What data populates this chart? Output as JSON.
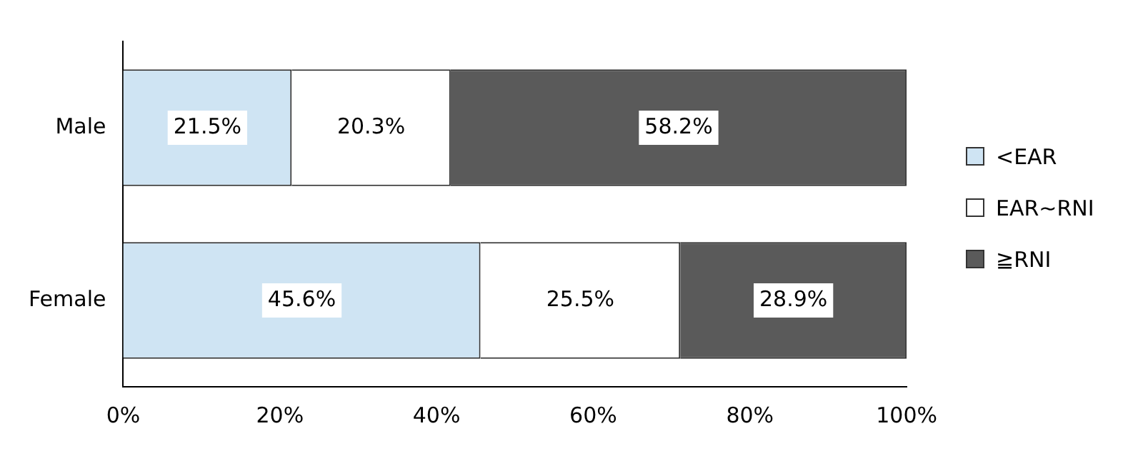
{
  "chart_data": {
    "type": "bar",
    "orientation": "horizontal",
    "stacked": true,
    "categories": [
      "Male",
      "Female"
    ],
    "series": [
      {
        "name": "<EAR",
        "color": "#cfe4f3",
        "values": [
          21.5,
          45.6
        ],
        "value_labels": [
          "21.5%",
          "45.6%"
        ]
      },
      {
        "name": "EAR~RNI",
        "color": "#ffffff",
        "values": [
          20.3,
          25.5
        ],
        "value_labels": [
          "20.3%",
          "25.5%"
        ]
      },
      {
        "name": "≧RNI",
        "color": "#5a5a5a",
        "values": [
          58.2,
          28.9
        ],
        "value_labels": [
          "58.2%",
          "28.9%"
        ]
      }
    ],
    "xlim": [
      0,
      100
    ],
    "xticks": [
      {
        "value": 0,
        "label": "0%"
      },
      {
        "value": 20,
        "label": "20%"
      },
      {
        "value": 40,
        "label": "40%"
      },
      {
        "value": 60,
        "label": "60%"
      },
      {
        "value": 80,
        "label": "80%"
      },
      {
        "value": 100,
        "label": "100%"
      }
    ],
    "grid": false,
    "legend": "right"
  }
}
